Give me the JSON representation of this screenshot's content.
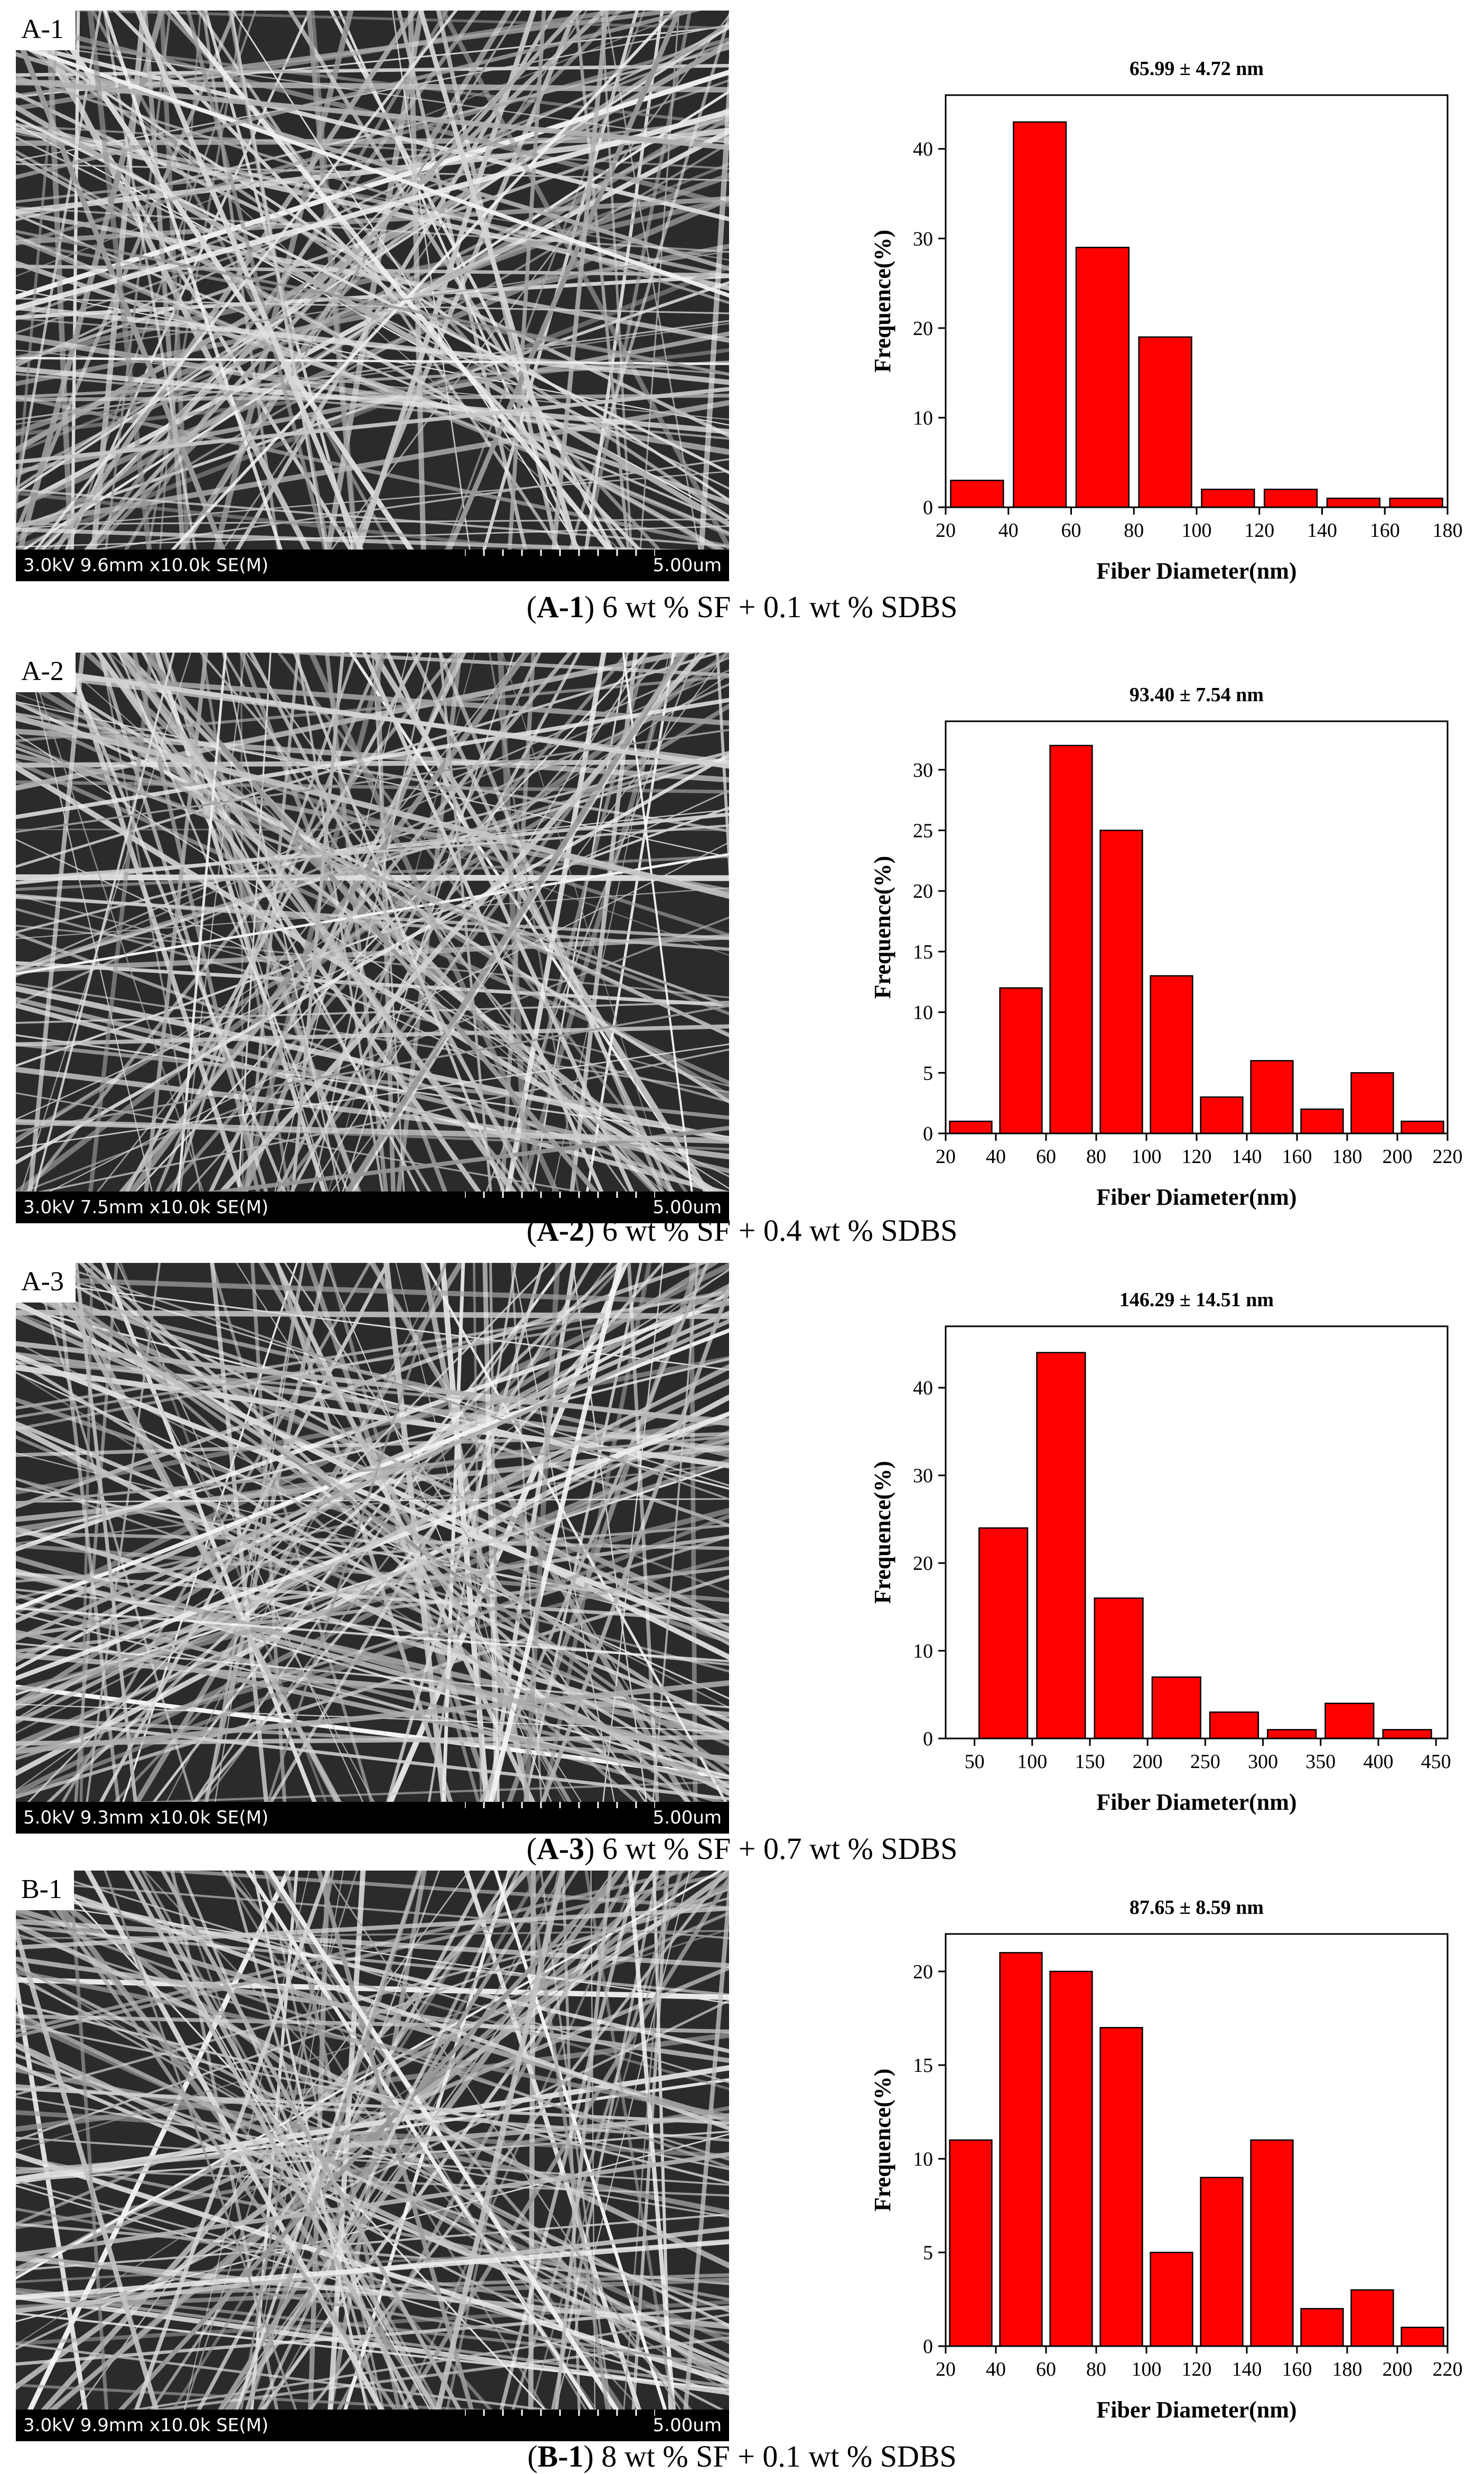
{
  "panels": [
    {
      "sem": {
        "label": "A-1",
        "info": "3.0kV 9.6mm x10.0k SE(M)",
        "scale": "5.00um"
      },
      "caption": {
        "id": "A-1",
        "text": "6 wt % SF + 0.1 wt % SDBS"
      }
    },
    {
      "sem": {
        "label": "A-2",
        "info": "3.0kV 7.5mm x10.0k SE(M)",
        "scale": "5.00um"
      },
      "caption": {
        "id": "A-2",
        "text": "6 wt % SF + 0.4 wt % SDBS"
      }
    },
    {
      "sem": {
        "label": "A-3",
        "info": "5.0kV 9.3mm x10.0k SE(M)",
        "scale": "5.00um"
      },
      "caption": {
        "id": "A-3",
        "text": "6 wt % SF + 0.7 wt % SDBS"
      }
    },
    {
      "sem": {
        "label": "B-1",
        "info": "3.0kV 9.9mm x10.0k SE(M)",
        "scale": "5.00um"
      },
      "caption": {
        "id": "B-1",
        "text": "8 wt % SF + 0.1 wt % SDBS"
      }
    }
  ],
  "chart_data": [
    {
      "type": "bar",
      "title": "65.99 ± 4.72 nm",
      "xlabel": "Fiber Diameter(nm)",
      "ylabel": "Frequence(%)",
      "bar_color": "#ff0000",
      "x_centers": [
        30,
        50,
        70,
        90,
        110,
        130,
        150,
        170
      ],
      "bin_width": 20,
      "values": [
        3,
        43,
        29,
        19,
        2,
        2,
        1,
        1
      ],
      "xlim": [
        20,
        180
      ],
      "xticks": [
        20,
        40,
        60,
        80,
        100,
        120,
        140,
        160,
        180
      ],
      "ylim": [
        0,
        46
      ],
      "yticks": [
        0,
        10,
        20,
        30,
        40
      ]
    },
    {
      "type": "bar",
      "title": "93.40 ± 7.54 nm",
      "xlabel": "Fiber Diameter(nm)",
      "ylabel": "Frequence(%)",
      "bar_color": "#ff0000",
      "x_centers": [
        30,
        50,
        70,
        90,
        110,
        130,
        150,
        170,
        190,
        210
      ],
      "bin_width": 20,
      "values": [
        1,
        12,
        32,
        25,
        13,
        3,
        6,
        2,
        5,
        1
      ],
      "xlim": [
        20,
        220
      ],
      "xticks": [
        20,
        40,
        60,
        80,
        100,
        120,
        140,
        160,
        180,
        200,
        220
      ],
      "ylim": [
        0,
        34
      ],
      "yticks": [
        0,
        5,
        10,
        15,
        20,
        25,
        30
      ]
    },
    {
      "type": "bar",
      "title": "146.29 ± 14.51 nm",
      "xlabel": "Fiber Diameter(nm)",
      "ylabel": "Frequence(%)",
      "bar_color": "#ff0000",
      "x_centers": [
        75,
        125,
        175,
        225,
        275,
        325,
        375,
        425
      ],
      "bin_width": 50,
      "values": [
        24,
        44,
        16,
        7,
        3,
        1,
        4,
        1
      ],
      "xlim": [
        25,
        460
      ],
      "xticks": [
        50,
        100,
        150,
        200,
        250,
        300,
        350,
        400,
        450
      ],
      "ylim": [
        0,
        47
      ],
      "yticks": [
        0,
        10,
        20,
        30,
        40
      ]
    },
    {
      "type": "bar",
      "title": "87.65 ± 8.59 nm",
      "xlabel": "Fiber Diameter(nm)",
      "ylabel": "Frequence(%)",
      "bar_color": "#ff0000",
      "x_centers": [
        30,
        50,
        70,
        90,
        110,
        130,
        150,
        170,
        190,
        210
      ],
      "bin_width": 20,
      "values": [
        11,
        21,
        20,
        17,
        5,
        9,
        11,
        2,
        3,
        1
      ],
      "xlim": [
        20,
        220
      ],
      "xticks": [
        20,
        40,
        60,
        80,
        100,
        120,
        140,
        160,
        180,
        200,
        220
      ],
      "ylim": [
        0,
        22
      ],
      "yticks": [
        0,
        5,
        10,
        15,
        20
      ]
    }
  ]
}
